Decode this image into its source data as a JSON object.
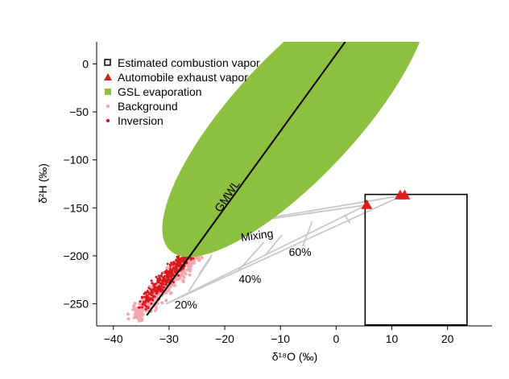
{
  "chart_data": {
    "type": "scatter",
    "xlabel": "δ¹⁸O (‰)",
    "ylabel": "δ²H (‰)",
    "xlim": [
      -43,
      28
    ],
    "ylim": [
      -273,
      23
    ],
    "x_ticks": [
      -40,
      -30,
      -20,
      -10,
      0,
      10,
      20
    ],
    "y_ticks": [
      0,
      -50,
      -100,
      -150,
      -200,
      -250
    ],
    "x_tick_labels": [
      "−40",
      "−30",
      "−20",
      "−10",
      "0",
      "10",
      "20"
    ],
    "y_tick_labels": [
      "0",
      "−50",
      "−100",
      "−150",
      "−200",
      "−250"
    ],
    "grid": false,
    "legend_position": "top-left",
    "legend": [
      {
        "label": "Estimated combustion vapor",
        "marker": "open-square",
        "color": "#000000"
      },
      {
        "label": "Automobile exhaust vapor",
        "marker": "triangle",
        "color": "#e31a1c"
      },
      {
        "label": "GSL evaporation",
        "marker": "square",
        "color": "#8dc03f"
      },
      {
        "label": "Background",
        "marker": "dot",
        "color": "#f4a8ae"
      },
      {
        "label": "Inversion",
        "marker": "dot",
        "color": "#d7191c"
      }
    ],
    "gmwl": {
      "label": "GMWL",
      "slope": 8,
      "intercept": 10,
      "x_range": [
        -34,
        4
      ],
      "color": "#000000"
    },
    "gsl_evaporation_ellipse": {
      "center": [
        -7.3,
        -54.5
      ],
      "half_axes": [
        21.3,
        11
      ],
      "angle_deg": 47,
      "color": "#8dc03f"
    },
    "combustion_vapor_box": {
      "x_range": [
        5.2,
        23.5
      ],
      "y_range": [
        -272,
        -136
      ],
      "color": "#000000"
    },
    "automobile_exhaust_points": [
      [
        5.5,
        -147
      ],
      [
        11.5,
        -137
      ],
      [
        12.3,
        -137
      ]
    ],
    "mixing_lines": {
      "label": "Mixing",
      "color": "#c8c8c8",
      "lines": [
        [
          [
            -30.5,
            -250
          ],
          [
            5.5,
            -147
          ]
        ],
        [
          [
            -30.5,
            -250
          ],
          [
            12,
            -137
          ]
        ],
        [
          [
            -22,
            -170
          ],
          [
            5.5,
            -147
          ]
        ],
        [
          [
            -22,
            -170
          ],
          [
            12,
            -137
          ]
        ]
      ],
      "fraction_ticks": [
        {
          "label": "20%",
          "from": [
            -26.5,
            -237
          ],
          "to": [
            -22.5,
            -202
          ]
        },
        {
          "label": "40%",
          "from": [
            -17.5,
            -215
          ],
          "to": [
            -13,
            -186
          ]
        },
        {
          "label": "60%",
          "from": [
            -6,
            -190
          ],
          "to": [
            -4.3,
            -164
          ]
        },
        {
          "label": "",
          "from": [
            -24.6,
            -219
          ],
          "to": [
            -22.3,
            -199
          ]
        },
        {
          "label": "",
          "from": [
            -12.8,
            -200
          ],
          "to": [
            -9.7,
            -178
          ]
        },
        {
          "label": "",
          "from": [
            2.5,
            -166
          ],
          "to": [
            1.5,
            -157
          ]
        }
      ],
      "fraction_labels": [
        {
          "text": "20%",
          "at": [
            -29,
            -255
          ]
        },
        {
          "text": "40%",
          "at": [
            -17.5,
            -228
          ]
        },
        {
          "text": "60%",
          "at": [
            -8.5,
            -200
          ]
        }
      ],
      "mixing_label_at": [
        -17,
        -185
      ]
    },
    "background_points_region": {
      "description_center": "band along GMWL",
      "x_range": [
        -36,
        -24
      ],
      "y_range": [
        -262,
        -190
      ],
      "color": "#f4a8ae"
    },
    "inversion_points_region": {
      "x_range": [
        -35,
        -22
      ],
      "y_range": [
        -255,
        -172
      ],
      "color": "#d7191c"
    }
  }
}
